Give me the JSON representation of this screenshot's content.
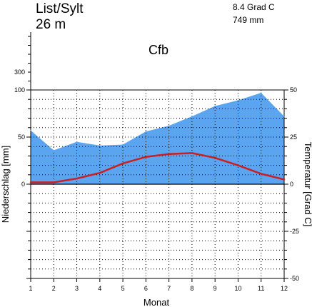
{
  "station": {
    "name": "List/Sylt",
    "elevation": "26 m",
    "mean_temp": "8.4 Grad C",
    "annual_precip": "749 mm"
  },
  "climate_class": "Cfb",
  "chart_data": {
    "type": "area",
    "title": "List/Sylt",
    "xlabel": "Monat",
    "ylabel": "Niederschlag [mm]",
    "y2label": "Temperatur [Grad C]",
    "x": [
      1,
      2,
      3,
      4,
      5,
      6,
      7,
      8,
      9,
      10,
      11,
      12
    ],
    "x_ticks": [
      "1",
      "2",
      "3",
      "4",
      "5",
      "6",
      "7",
      "8",
      "9",
      "10",
      "11",
      "12"
    ],
    "y_ticks": [
      "100",
      "50",
      "0"
    ],
    "y_upper_ticks": [
      "300"
    ],
    "y2_ticks": [
      "50",
      "25",
      "0",
      "-25",
      "-50"
    ],
    "ylim": [
      -100,
      100
    ],
    "y2lim": [
      -50,
      50
    ],
    "grid": true,
    "series": [
      {
        "name": "Niederschlag",
        "axis": "left",
        "color": "#5aa4f0",
        "values": [
          57,
          36,
          45,
          41,
          42,
          56,
          62,
          72,
          83,
          89,
          97,
          72
        ]
      },
      {
        "name": "Temperatur",
        "axis": "right",
        "color": "#cc1f1f",
        "values": [
          1.0,
          1.0,
          3.0,
          6.0,
          11.0,
          14.5,
          16.0,
          16.5,
          14.0,
          10.0,
          5.5,
          2.5
        ]
      }
    ]
  }
}
